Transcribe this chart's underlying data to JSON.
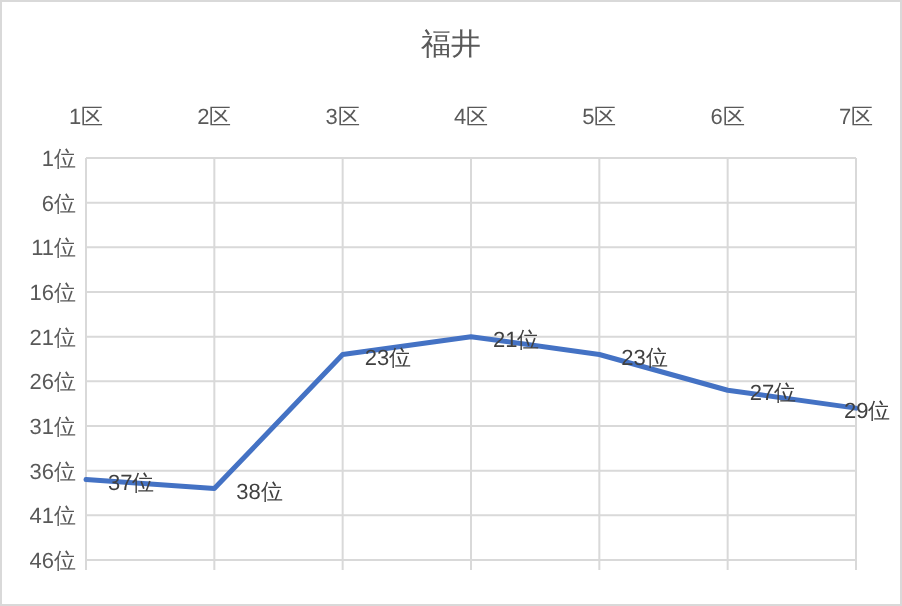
{
  "chart_data": {
    "type": "line",
    "title": "福井",
    "categories": [
      "1区",
      "2区",
      "3区",
      "4区",
      "5区",
      "6区",
      "7区"
    ],
    "series": [
      {
        "color": "#4472c4",
        "values": [
          37,
          38,
          23,
          21,
          23,
          27,
          29
        ],
        "value_labels": [
          "37位",
          "38位",
          "23位",
          "21位",
          "23位",
          "27位",
          "29位"
        ]
      }
    ],
    "ylim": [
      46,
      1
    ],
    "yticks": [
      {
        "value": 1,
        "label": "1位"
      },
      {
        "value": 6,
        "label": "6位"
      },
      {
        "value": 11,
        "label": "11位"
      },
      {
        "value": 16,
        "label": "16位"
      },
      {
        "value": 21,
        "label": "21位"
      },
      {
        "value": 26,
        "label": "26位"
      },
      {
        "value": 31,
        "label": "31位"
      },
      {
        "value": 36,
        "label": "36位"
      },
      {
        "value": 41,
        "label": "41位"
      },
      {
        "value": 46,
        "label": "46位"
      }
    ],
    "grid": true,
    "marker": "none",
    "line_style": "solid"
  }
}
